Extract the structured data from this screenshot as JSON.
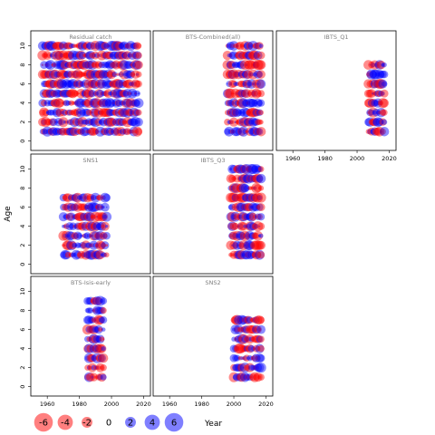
{
  "chart_data": {
    "type": "scatter",
    "encoding": "bubble: x = year, y = age, area = residual magnitude; red = negative, blue = positive",
    "xlabel": "Year",
    "ylabel": "Age",
    "xticks": [
      1960,
      1980,
      2000,
      2020
    ],
    "yticks": [
      0,
      2,
      4,
      6,
      8,
      10
    ],
    "xlim": [
      1952,
      2022
    ],
    "ylim": [
      -0.6,
      11.2
    ],
    "colors": {
      "negative": "#ff0000",
      "positive": "#0000ff"
    },
    "legend": {
      "placement": "bottom",
      "values": [
        -6,
        -4,
        -2,
        0,
        2,
        4,
        6
      ]
    },
    "panels": [
      {
        "title": "Residual catch",
        "years": [
          1957,
          2017
        ],
        "ages": [
          1,
          10
        ]
      },
      {
        "title": "BTS-Combined(all)",
        "years": [
          1996,
          2017
        ],
        "ages": [
          1,
          10
        ]
      },
      {
        "title": "IBTS_Q1",
        "years": [
          2007,
          2017
        ],
        "ages": [
          1,
          8
        ]
      },
      {
        "title": "SNS1",
        "years": [
          1970,
          1997
        ],
        "ages": [
          1,
          7
        ]
      },
      {
        "title": "IBTS_Q3",
        "years": [
          1998,
          2017
        ],
        "ages": [
          1,
          10
        ]
      },
      {
        "title": "",
        "years": [],
        "ages": []
      },
      {
        "title": "BTS-Isis-early",
        "years": [
          1985,
          1995
        ],
        "ages": [
          1,
          9
        ]
      },
      {
        "title": "SNS2",
        "years": [
          2000,
          2017
        ],
        "ages": [
          1,
          7
        ]
      },
      {
        "title": "",
        "years": [],
        "ages": []
      }
    ]
  }
}
